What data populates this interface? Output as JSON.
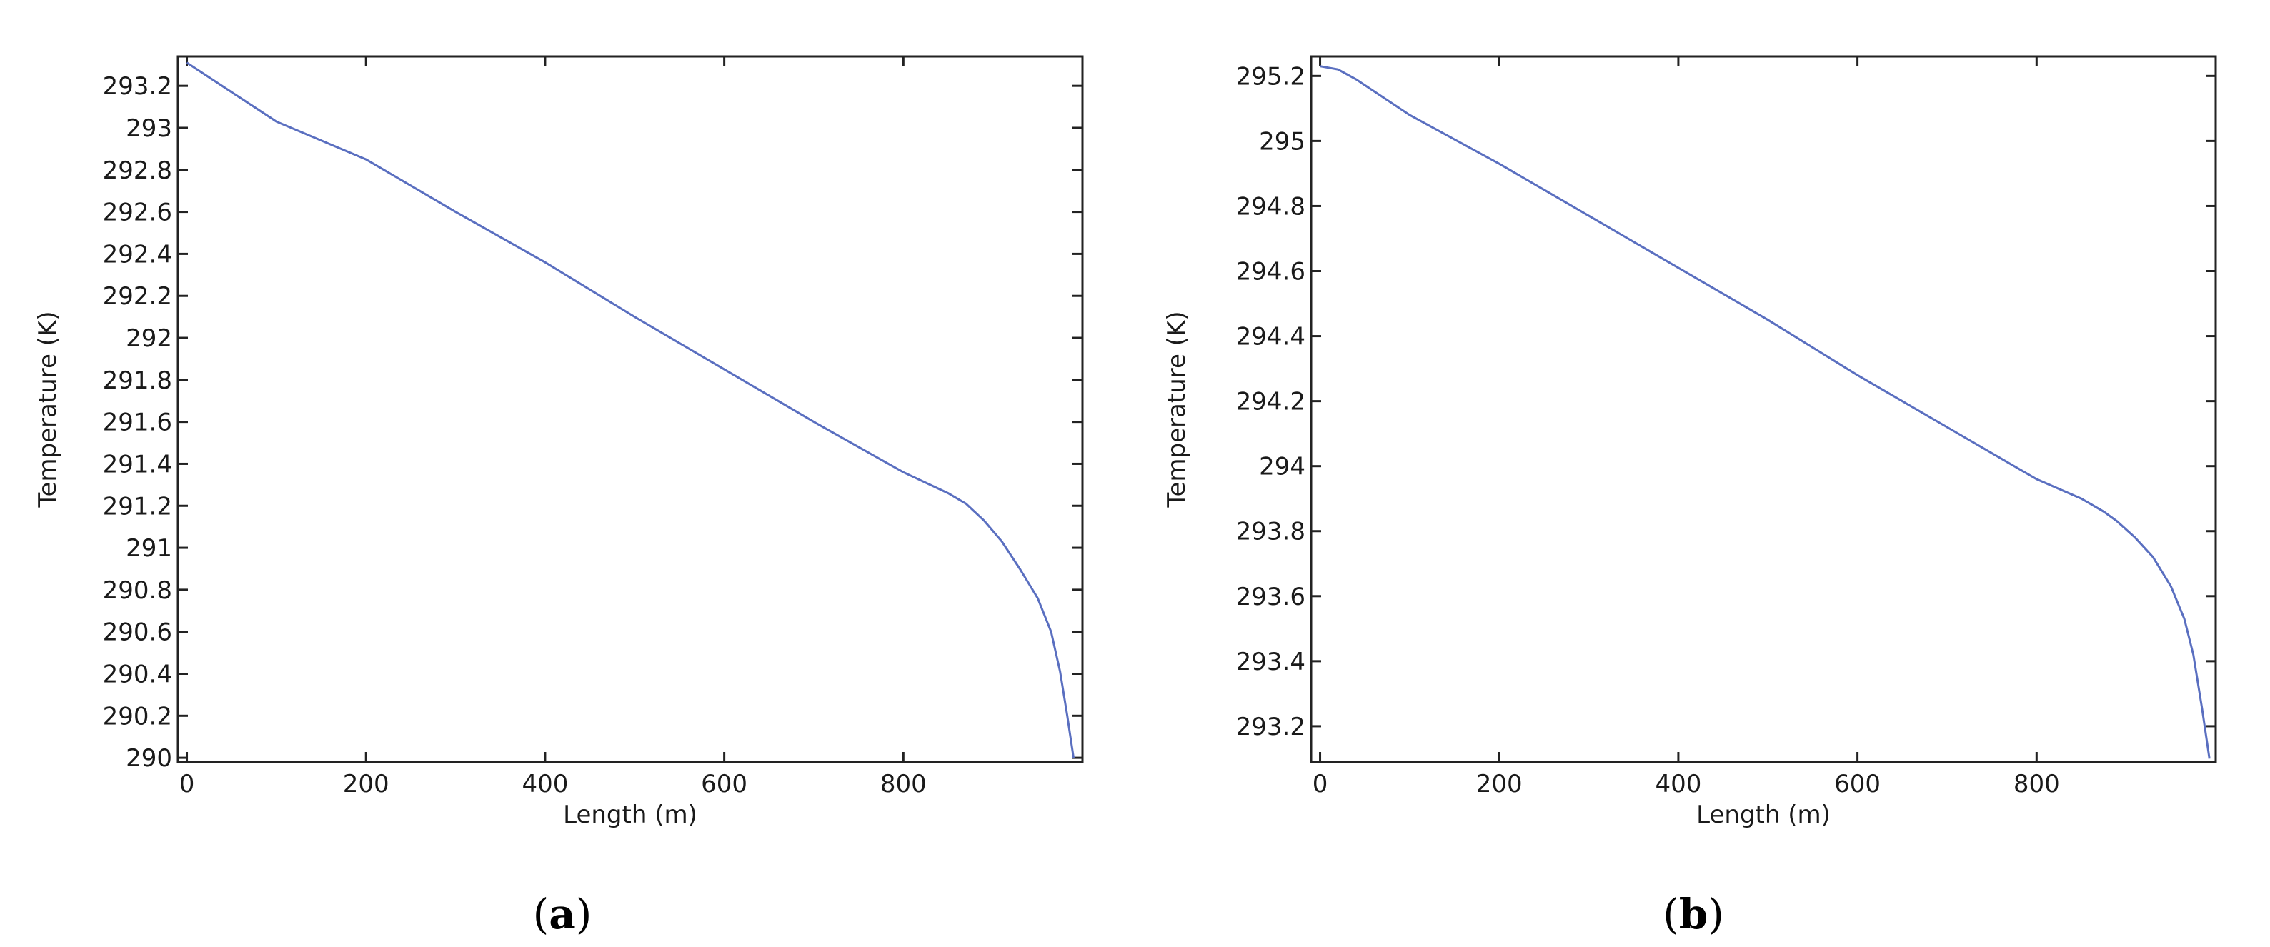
{
  "chart_data": [
    {
      "type": "line",
      "panel_label": "a",
      "xlabel": "Length (m)",
      "ylabel": "Temperature (K)",
      "xlim": [
        -10,
        1000
      ],
      "ylim": [
        289.98,
        293.34
      ],
      "xticks": [
        0,
        200,
        400,
        600,
        800
      ],
      "yticks": [
        290,
        290.2,
        290.4,
        290.6,
        290.8,
        291,
        291.2,
        291.4,
        291.6,
        291.8,
        292,
        292.2,
        292.4,
        292.6,
        292.8,
        293,
        293.2
      ],
      "grid": false,
      "series_color": "#5a6fc0",
      "series": [
        {
          "x": [
            0,
            100,
            200,
            300,
            400,
            500,
            600,
            700,
            800,
            850,
            870,
            890,
            910,
            930,
            950,
            965,
            975,
            983,
            990
          ],
          "y": [
            293.31,
            293.03,
            292.85,
            292.6,
            292.36,
            292.1,
            291.85,
            291.6,
            291.36,
            291.26,
            291.21,
            291.13,
            291.03,
            290.9,
            290.76,
            290.6,
            290.41,
            290.2,
            290.0
          ]
        }
      ]
    },
    {
      "type": "line",
      "panel_label": "b",
      "xlabel": "Length (m)",
      "ylabel": "Temperature (K)",
      "xlim": [
        -10,
        1000
      ],
      "ylim": [
        293.09,
        295.26
      ],
      "xticks": [
        0,
        200,
        400,
        600,
        800
      ],
      "yticks": [
        293.2,
        293.4,
        293.6,
        293.8,
        294,
        294.2,
        294.4,
        294.6,
        294.8,
        295,
        295.2
      ],
      "grid": false,
      "series_color": "#5a6fc0",
      "series": [
        {
          "x": [
            0,
            20,
            40,
            100,
            200,
            300,
            400,
            500,
            600,
            700,
            800,
            850,
            875,
            890,
            910,
            930,
            950,
            965,
            975,
            985,
            993
          ],
          "y": [
            295.23,
            295.22,
            295.19,
            295.08,
            294.93,
            294.77,
            294.61,
            294.45,
            294.28,
            294.12,
            293.96,
            293.9,
            293.86,
            293.83,
            293.78,
            293.72,
            293.63,
            293.53,
            293.42,
            293.25,
            293.1
          ]
        }
      ]
    }
  ]
}
